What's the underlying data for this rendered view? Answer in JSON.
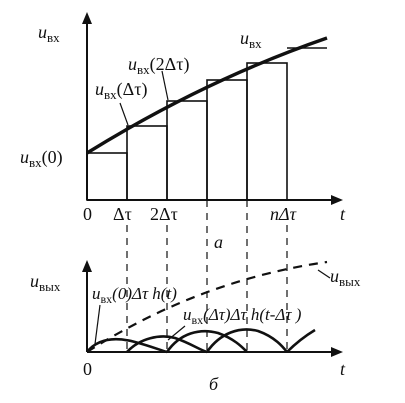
{
  "top_panel": {
    "y_label_main": "u",
    "y_label_sub": "вх",
    "x_label": "t",
    "curve_label_main": "u",
    "curve_label_sub": "вх",
    "label_2dt_main": "u",
    "label_2dt_sub": "вх",
    "label_2dt_arg": "(2Δτ)",
    "label_dt_main": "u",
    "label_dt_sub": "вх",
    "label_dt_arg": "(Δτ)",
    "label_0_main": "u",
    "label_0_sub": "вх",
    "label_0_arg": "(0)",
    "ticks": [
      "0",
      "Δτ",
      "2Δτ",
      "nΔτ"
    ],
    "panel_letter": "а"
  },
  "bottom_panel": {
    "y_label_main": "u",
    "y_label_sub": "вых",
    "x_label": "t",
    "origin_label": "0",
    "curve_label_main": "u",
    "curve_label_sub": "вых",
    "resp0_main": "u",
    "resp0_sub": "вх",
    "resp0_rest": "(0)Δτ h(t)",
    "resp1_main": "u",
    "resp1_sub": "вх",
    "resp1_rest": "(Δτ)Δτ h(t-Δτ )",
    "panel_letter": "б"
  }
}
